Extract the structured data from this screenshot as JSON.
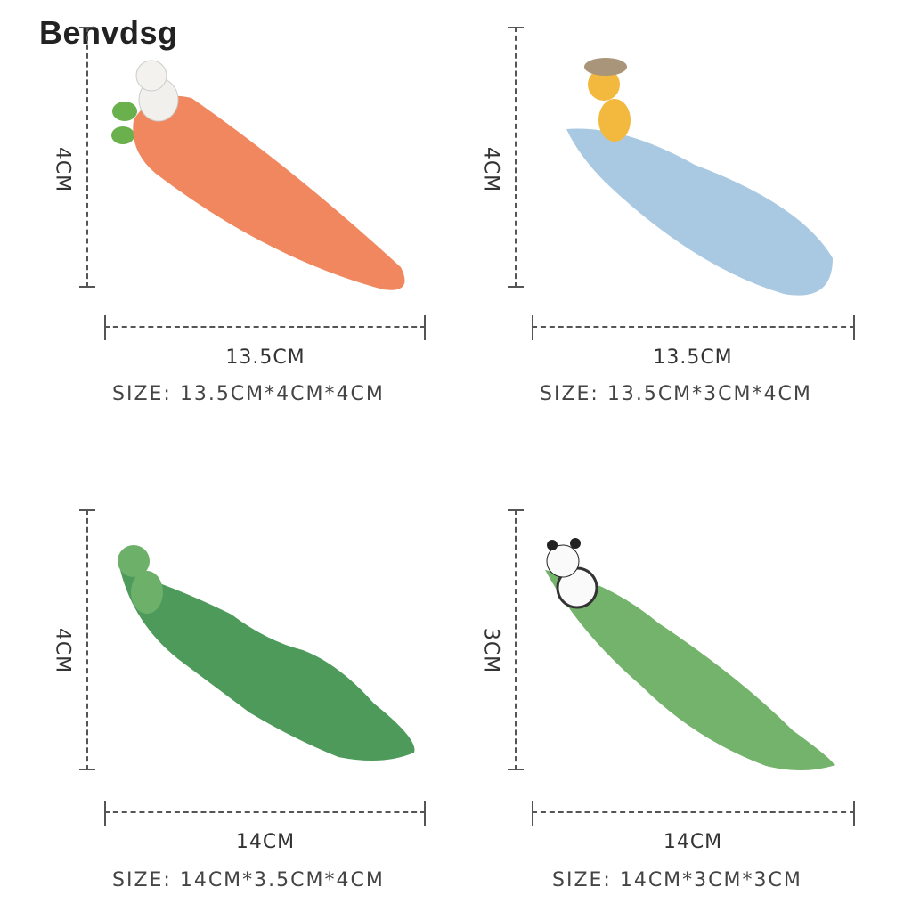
{
  "brand": "Benvdsg",
  "products": [
    {
      "name": "carrot-rabbit",
      "height_label": "4CM",
      "length_label": "13.5CM",
      "size": "SIZE: 13.5CM*4CM*4CM",
      "color": "#f0875f"
    },
    {
      "name": "fish-cat",
      "height_label": "4CM",
      "length_label": "13.5CM",
      "size": "SIZE: 13.5CM*3CM*4CM",
      "color": "#a9c9e2"
    },
    {
      "name": "leaf-frog",
      "height_label": "4CM",
      "length_label": "14CM",
      "size": "SIZE: 14CM*3.5CM*4CM",
      "color": "#4e9a5b"
    },
    {
      "name": "leaf-panda",
      "height_label": "3CM",
      "length_label": "14CM",
      "size": "SIZE: 14CM*3CM*3CM",
      "color": "#74b36b"
    }
  ]
}
